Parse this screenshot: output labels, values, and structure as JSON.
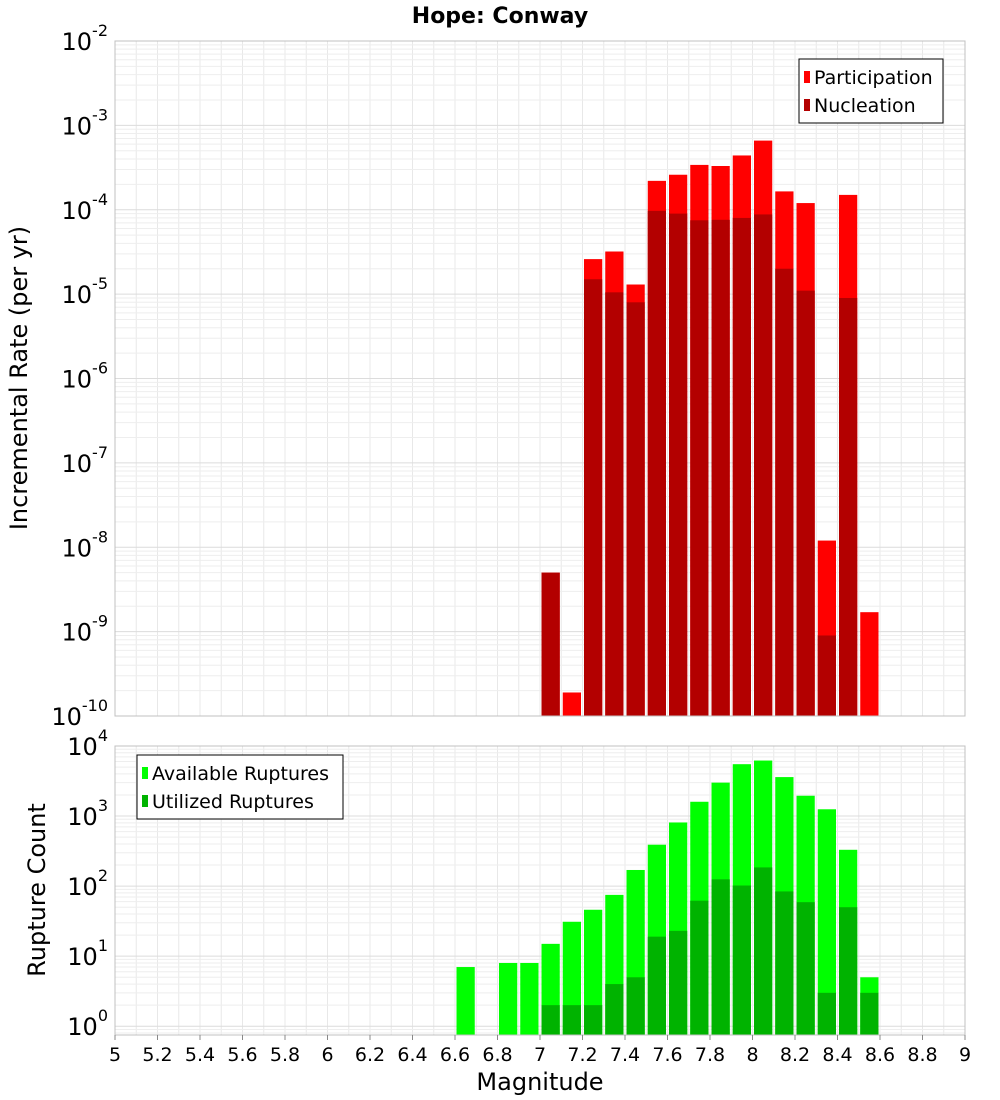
{
  "chart_data": [
    {
      "type": "bar",
      "title": "Hope: Conway",
      "xlabel": "Magnitude",
      "ylabel": "Incremental Rate (per yr)",
      "yscale": "log",
      "ylim": [
        1e-10,
        0.01
      ],
      "xlim": [
        5,
        9
      ],
      "bin_width": 0.1,
      "y_ticks": [
        {
          "base": "10",
          "exp": "-10"
        },
        {
          "base": "10",
          "exp": "-9"
        },
        {
          "base": "10",
          "exp": "-8"
        },
        {
          "base": "10",
          "exp": "-7"
        },
        {
          "base": "10",
          "exp": "-6"
        },
        {
          "base": "10",
          "exp": "-5"
        },
        {
          "base": "10",
          "exp": "-4"
        },
        {
          "base": "10",
          "exp": "-3"
        },
        {
          "base": "10",
          "exp": "-2"
        }
      ],
      "legend_position": "top-right",
      "grid": true,
      "x": [
        7.05,
        7.15,
        7.25,
        7.35,
        7.45,
        7.55,
        7.65,
        7.75,
        7.85,
        7.95,
        8.05,
        8.15,
        8.25,
        8.35,
        8.45,
        8.55
      ],
      "series": [
        {
          "name": "Participation",
          "color": "#ff0000",
          "values": [
            5e-09,
            1.9e-10,
            2.6e-05,
            3.2e-05,
            1.3e-05,
            0.00022,
            0.00026,
            0.00034,
            0.00033,
            0.00044,
            0.00066,
            0.000165,
            0.00012,
            1.2e-08,
            0.00015,
            1.7e-09
          ]
        },
        {
          "name": "Nucleation",
          "color": "#b30000",
          "values": [
            5e-09,
            null,
            1.5e-05,
            1.05e-05,
            8e-06,
            9.7e-05,
            9e-05,
            7.5e-05,
            7.6e-05,
            8e-05,
            8.8e-05,
            2e-05,
            1.1e-05,
            9e-10,
            9e-06,
            null
          ]
        }
      ]
    },
    {
      "type": "bar",
      "xlabel": "Magnitude",
      "ylabel": "Rupture Count",
      "yscale": "log",
      "ylim": [
        0.75,
        10000
      ],
      "xlim": [
        5,
        9
      ],
      "bin_width": 0.1,
      "x_ticks": [
        "5",
        "5.2",
        "5.4",
        "5.6",
        "5.8",
        "6",
        "6.2",
        "6.4",
        "6.6",
        "6.8",
        "7",
        "7.2",
        "7.4",
        "7.6",
        "7.8",
        "8",
        "8.2",
        "8.4",
        "8.6",
        "8.8",
        "9"
      ],
      "y_ticks": [
        {
          "base": "10",
          "exp": "0"
        },
        {
          "base": "10",
          "exp": "1"
        },
        {
          "base": "10",
          "exp": "2"
        },
        {
          "base": "10",
          "exp": "3"
        },
        {
          "base": "10",
          "exp": "4"
        }
      ],
      "legend_position": "top-left",
      "grid": true,
      "x": [
        6.65,
        6.85,
        6.95,
        7.05,
        7.15,
        7.25,
        7.35,
        7.45,
        7.55,
        7.65,
        7.75,
        7.85,
        7.95,
        8.05,
        8.15,
        8.25,
        8.35,
        8.45,
        8.55
      ],
      "series": [
        {
          "name": "Available Ruptures",
          "color": "#00ff00",
          "values": [
            7,
            8,
            8,
            15,
            31,
            46,
            75,
            170,
            390,
            810,
            1600,
            3000,
            5500,
            6200,
            3600,
            1950,
            1250,
            330,
            5
          ]
        },
        {
          "name": "Utilized Ruptures",
          "color": "#00b300",
          "values": [
            null,
            null,
            null,
            2,
            2,
            2,
            4,
            5,
            19,
            23,
            62,
            125,
            102,
            185,
            84,
            59,
            3,
            50,
            3
          ]
        }
      ]
    }
  ]
}
